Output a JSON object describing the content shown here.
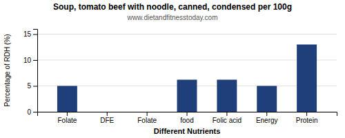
{
  "chart_data": {
    "type": "bar",
    "title": "Soup, tomato beef with noodle, canned, condensed per 100g",
    "subtitle": "www.dietandfitnesstoday.com",
    "categories": [
      "Folate",
      "DFE",
      "Folate",
      "food",
      "Folic acid",
      "Energy",
      "Protein"
    ],
    "values": [
      5.0,
      0.0,
      0.0,
      6.2,
      6.2,
      5.0,
      13.0
    ],
    "color": "#1F3F7A",
    "xlabel": "Different Nutrients",
    "ylabel": "Percentage of RDH (%)",
    "ylim": [
      0,
      16
    ],
    "yticks": [
      0,
      5,
      10,
      15
    ],
    "grid": true
  }
}
